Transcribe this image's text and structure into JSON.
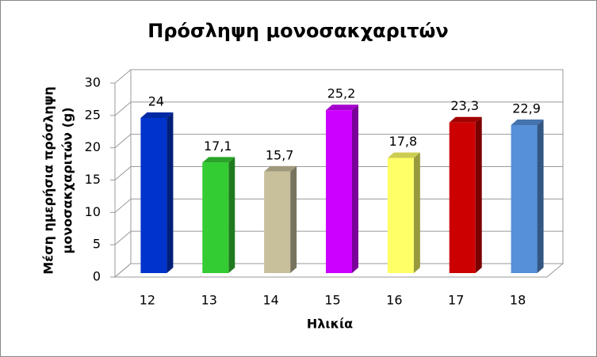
{
  "chart_data": {
    "type": "bar3d",
    "title": "Πρόσληψη μονοσακχαριτών",
    "ylabel": [
      "Μέση ημερήσια πρόσληψη",
      "μονοσακχαριτών (g)"
    ],
    "xlabel": "Ηλικία",
    "categories": [
      "12",
      "13",
      "14",
      "15",
      "16",
      "17",
      "18"
    ],
    "values": [
      24,
      17.1,
      15.7,
      25.2,
      17.8,
      23.3,
      22.9
    ],
    "value_labels": [
      "24",
      "17,1",
      "15,7",
      "25,2",
      "17,8",
      "23,3",
      "22,9"
    ],
    "colors": [
      "#0033cc",
      "#33cc33",
      "#c8bf9b",
      "#cc00ff",
      "#ffff66",
      "#cc0000",
      "#5590d8"
    ],
    "ylim": [
      0,
      30
    ],
    "yticks": [
      0,
      5,
      10,
      15,
      20,
      25,
      30
    ],
    "grid": true
  }
}
